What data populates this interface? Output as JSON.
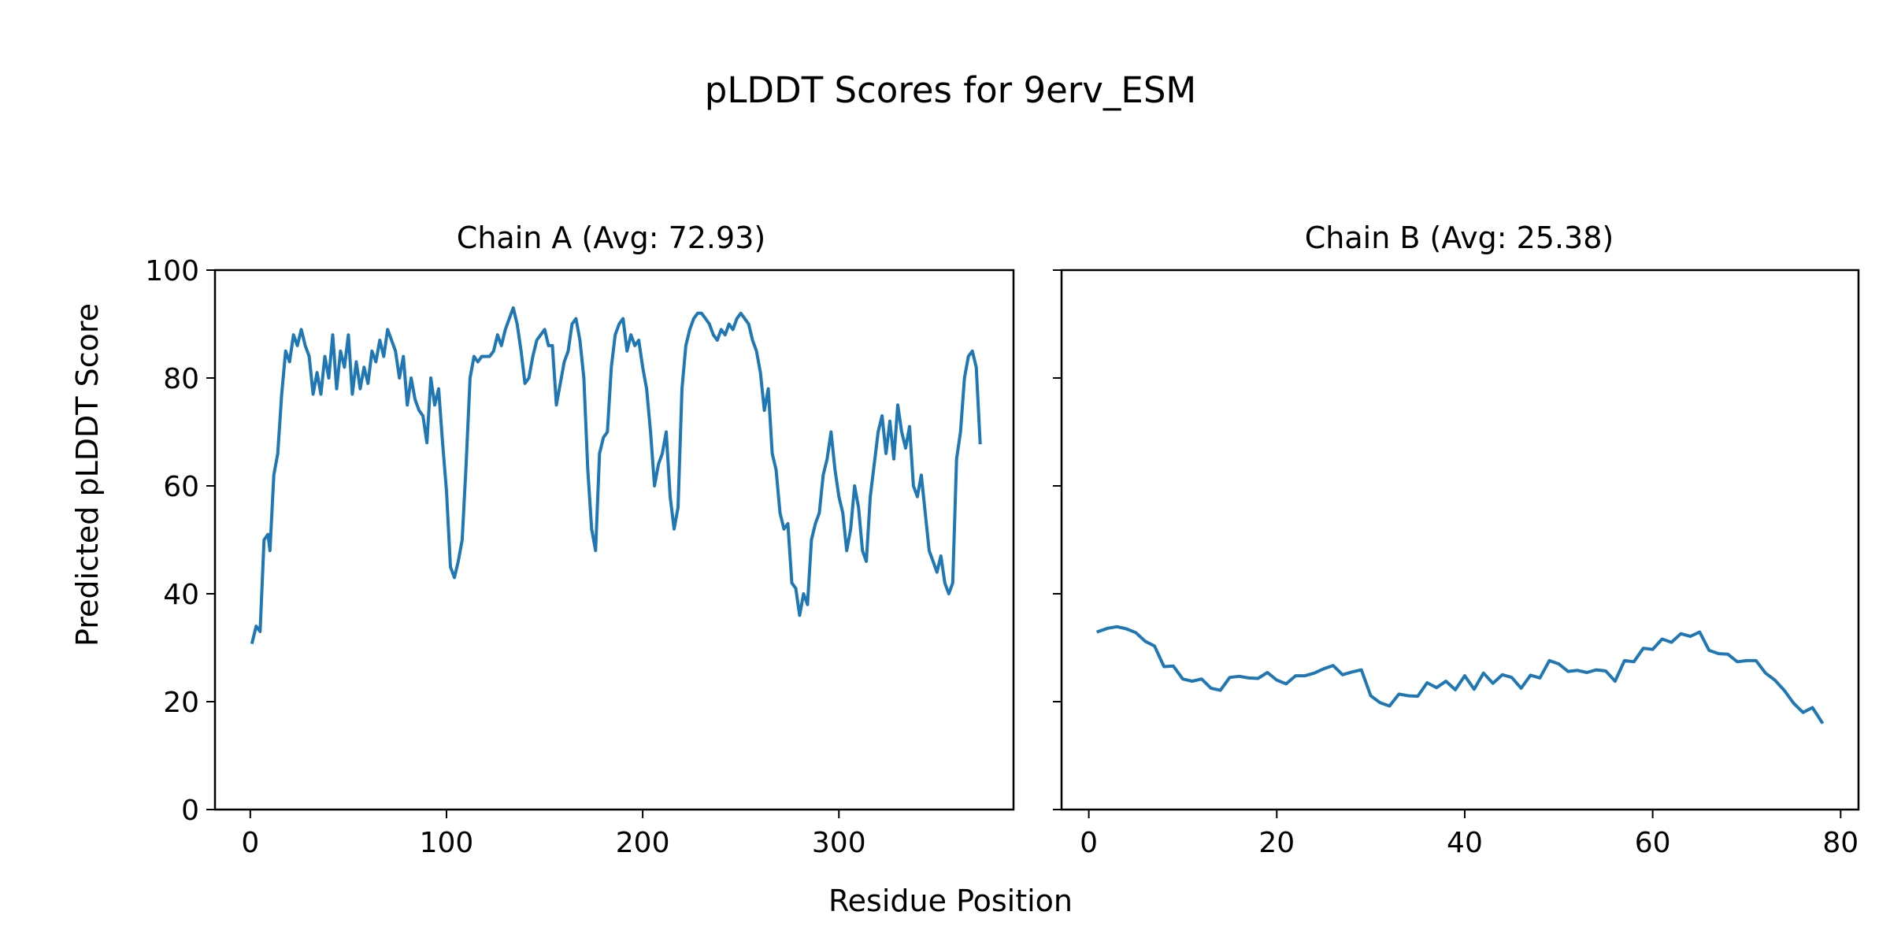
{
  "figure": {
    "title": "pLDDT Scores for 9erv_ESM",
    "xlabel": "Residue Position",
    "ylabel": "Predicted pLDDT Score"
  },
  "colors": {
    "line": "#1f77b4",
    "axes": "#000000",
    "background": "#ffffff"
  },
  "chart_data": [
    {
      "type": "line",
      "title": "Chain A (Avg: 72.93)",
      "xlabel": "Residue Position",
      "ylabel": "Predicted pLDDT Score",
      "xlim": [
        -18,
        389
      ],
      "ylim": [
        0,
        100
      ],
      "xticks": [
        0,
        100,
        200,
        300
      ],
      "yticks": [
        0,
        20,
        40,
        60,
        80,
        100
      ],
      "grid": false,
      "series": [
        {
          "x": [
            1,
            3,
            5,
            7,
            9,
            10,
            12,
            14,
            16,
            18,
            20,
            22,
            24,
            26,
            28,
            30,
            32,
            34,
            36,
            38,
            40,
            42,
            44,
            46,
            48,
            50,
            52,
            54,
            56,
            58,
            60,
            62,
            64,
            66,
            68,
            70,
            72,
            74,
            76,
            78,
            80,
            82,
            84,
            86,
            88,
            90,
            92,
            94,
            96,
            98,
            100,
            102,
            104,
            106,
            108,
            110,
            112,
            114,
            116,
            118,
            120,
            122,
            124,
            126,
            128,
            130,
            132,
            134,
            136,
            138,
            140,
            142,
            144,
            146,
            148,
            150,
            152,
            154,
            156,
            158,
            160,
            162,
            164,
            166,
            168,
            170,
            172,
            174,
            176,
            178,
            180,
            182,
            184,
            186,
            188,
            190,
            192,
            194,
            196,
            198,
            200,
            202,
            204,
            206,
            208,
            210,
            212,
            214,
            216,
            218,
            220,
            222,
            224,
            226,
            228,
            230,
            232,
            234,
            236,
            238,
            240,
            242,
            244,
            246,
            248,
            250,
            252,
            254,
            256,
            258,
            260,
            262,
            264,
            266,
            268,
            270,
            272,
            274,
            276,
            278,
            280,
            282,
            284,
            286,
            288,
            290,
            292,
            294,
            296,
            298,
            300,
            302,
            304,
            306,
            308,
            310,
            312,
            314,
            316,
            318,
            320,
            322,
            324,
            326,
            328,
            330,
            332,
            334,
            336,
            338,
            340,
            342,
            344,
            346,
            348,
            350,
            352,
            354,
            356,
            358,
            360,
            362,
            364,
            366,
            368,
            370,
            372
          ],
          "y": [
            31,
            34,
            33,
            50,
            51,
            48,
            62,
            66,
            77,
            85,
            83,
            88,
            86,
            89,
            86,
            84,
            77,
            81,
            77,
            84,
            80,
            88,
            78,
            85,
            82,
            88,
            77,
            83,
            78,
            82,
            79,
            85,
            83,
            87,
            84,
            89,
            87,
            85,
            80,
            84,
            75,
            80,
            76,
            74,
            73,
            68,
            80,
            75,
            78,
            68,
            59,
            45,
            43,
            46,
            50,
            64,
            80,
            84,
            83,
            84,
            84,
            84,
            85,
            88,
            86,
            89,
            91,
            93,
            90,
            85,
            79,
            80,
            84,
            87,
            88,
            89,
            86,
            86,
            75,
            79,
            83,
            85,
            90,
            91,
            87,
            80,
            63,
            52,
            48,
            66,
            69,
            70,
            82,
            88,
            90,
            91,
            85,
            88,
            86,
            87,
            82,
            78,
            70,
            60,
            64,
            66,
            70,
            58,
            52,
            56,
            78,
            86,
            89,
            91,
            92,
            92,
            91,
            90,
            88,
            87,
            89,
            88,
            90,
            89,
            91,
            92,
            91,
            90,
            87,
            85,
            81,
            74,
            78,
            66,
            63,
            55,
            52,
            53,
            42,
            41,
            36,
            40,
            38,
            50,
            53,
            55,
            62,
            65,
            70,
            63,
            58,
            55,
            48,
            52,
            60,
            56,
            48,
            46,
            58,
            64,
            70,
            73,
            66,
            72,
            65,
            75,
            70,
            67,
            71,
            60,
            58,
            62,
            55,
            48,
            46,
            44,
            47,
            42,
            40,
            42,
            65,
            70,
            80,
            84,
            85,
            82,
            68
          ]
        }
      ]
    },
    {
      "type": "line",
      "title": "Chain B (Avg: 25.38)",
      "xlabel": "Residue Position",
      "xlim": [
        -2.9,
        81.9
      ],
      "ylim": [
        0,
        100
      ],
      "xticks": [
        0,
        20,
        40,
        60,
        80
      ],
      "yticks": [
        0,
        20,
        40,
        60,
        80,
        100
      ],
      "grid": false,
      "series": [
        {
          "x": [
            1,
            2,
            3,
            4,
            5,
            6,
            7,
            8,
            9,
            10,
            11,
            12,
            13,
            14,
            15,
            16,
            17,
            18,
            19,
            20,
            21,
            22,
            23,
            24,
            25,
            26,
            27,
            28,
            29,
            30,
            31,
            32,
            33,
            34,
            35,
            36,
            37,
            38,
            39,
            40,
            41,
            42,
            43,
            44,
            45,
            46,
            47,
            48,
            49,
            50,
            51,
            52,
            53,
            54,
            55,
            56,
            57,
            58,
            59,
            60,
            61,
            62,
            63,
            64,
            65,
            66,
            67,
            68,
            69,
            70,
            71,
            72,
            73,
            74,
            75,
            76,
            77,
            78
          ],
          "y": [
            33.0,
            33.6,
            33.9,
            33.5,
            32.8,
            31.2,
            30.3,
            26.5,
            26.6,
            24.2,
            23.8,
            24.2,
            22.5,
            22.1,
            24.5,
            24.7,
            24.4,
            24.3,
            25.4,
            24.0,
            23.3,
            24.8,
            24.8,
            25.3,
            26.1,
            26.7,
            25.0,
            25.5,
            25.9,
            21.1,
            19.8,
            19.2,
            21.4,
            21.1,
            21.0,
            23.5,
            22.6,
            23.8,
            22.2,
            24.8,
            22.3,
            25.3,
            23.4,
            25.0,
            24.5,
            22.5,
            24.9,
            24.4,
            27.6,
            27.0,
            25.6,
            25.8,
            25.4,
            25.9,
            25.7,
            23.8,
            27.6,
            27.4,
            29.9,
            29.7,
            31.6,
            31.0,
            32.6,
            32.1,
            32.9,
            29.5,
            28.9,
            28.8,
            27.4,
            27.6,
            27.6,
            25.3,
            24.0,
            22.1,
            19.7,
            18.0,
            18.9,
            16.2
          ]
        }
      ]
    }
  ]
}
